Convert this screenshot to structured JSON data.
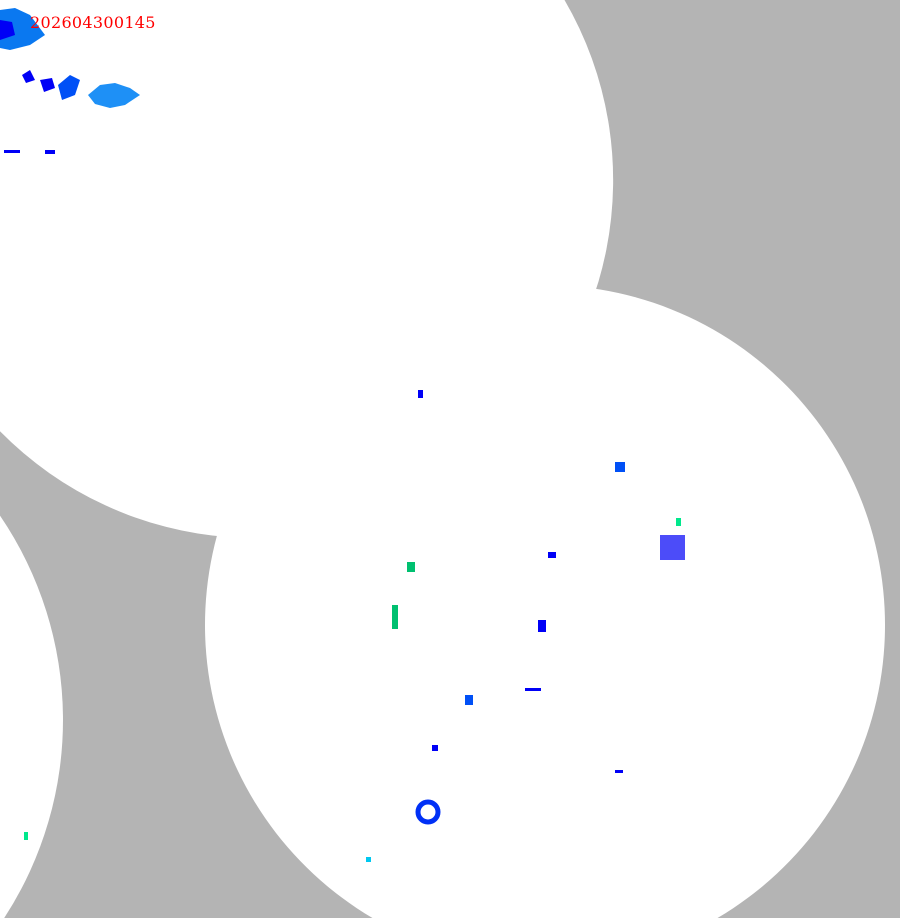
{
  "map": {
    "timestamp": "202604300145",
    "background_color": "#b4b4b4",
    "coverage_color": "#ffffff",
    "echo_colors": [
      "#0000f6",
      "#00a0f6",
      "#00c8f0",
      "#00e88c"
    ],
    "timestamp_color": "#ff0000"
  }
}
